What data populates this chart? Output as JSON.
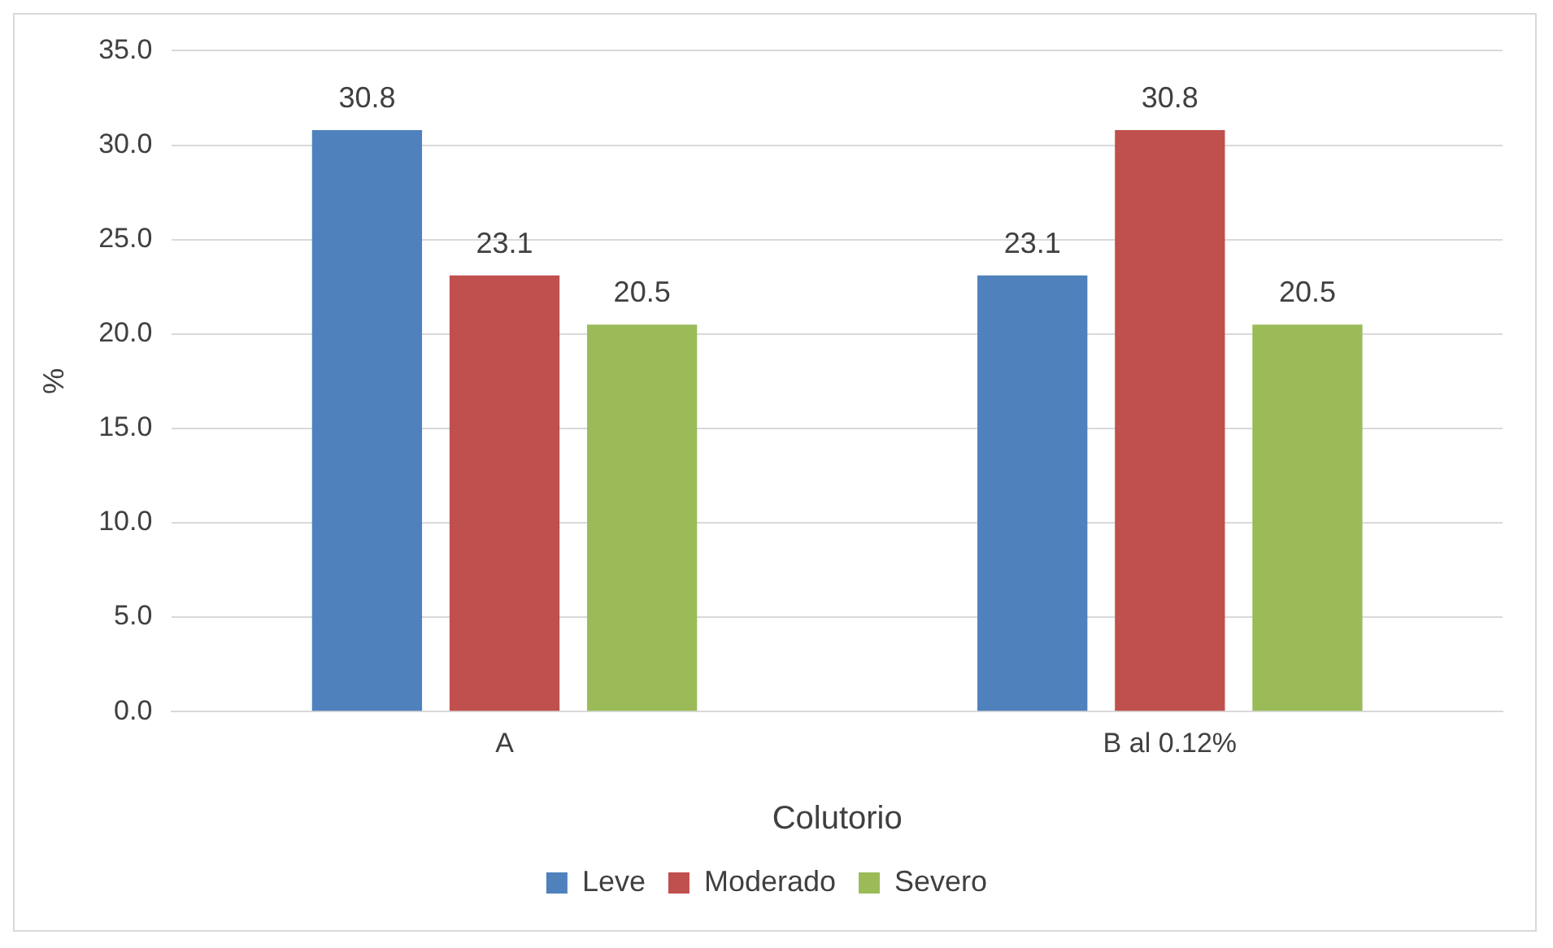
{
  "chart_data": {
    "type": "bar",
    "xlabel": "Colutorio",
    "ylabel": "%",
    "categories": [
      "A",
      "B al 0.12%"
    ],
    "series": [
      {
        "name": "Leve",
        "color": "#4f81bd",
        "values": [
          30.8,
          23.1
        ]
      },
      {
        "name": "Moderado",
        "color": "#c0504d",
        "values": [
          23.1,
          30.8
        ]
      },
      {
        "name": "Severo",
        "color": "#9bbb59",
        "values": [
          20.5,
          20.5
        ]
      }
    ],
    "ylim": [
      0,
      35
    ],
    "yticks": [
      {
        "value": 0,
        "label": "0.0"
      },
      {
        "value": 5,
        "label": "5.0"
      },
      {
        "value": 10,
        "label": "10.0"
      },
      {
        "value": 15,
        "label": "15.0"
      },
      {
        "value": 20,
        "label": "20.0"
      },
      {
        "value": 25,
        "label": "25.0"
      },
      {
        "value": 30,
        "label": "30.0"
      },
      {
        "value": 35,
        "label": "35.0"
      }
    ],
    "grid": "y",
    "legend": "bottom",
    "data_labels": true
  }
}
